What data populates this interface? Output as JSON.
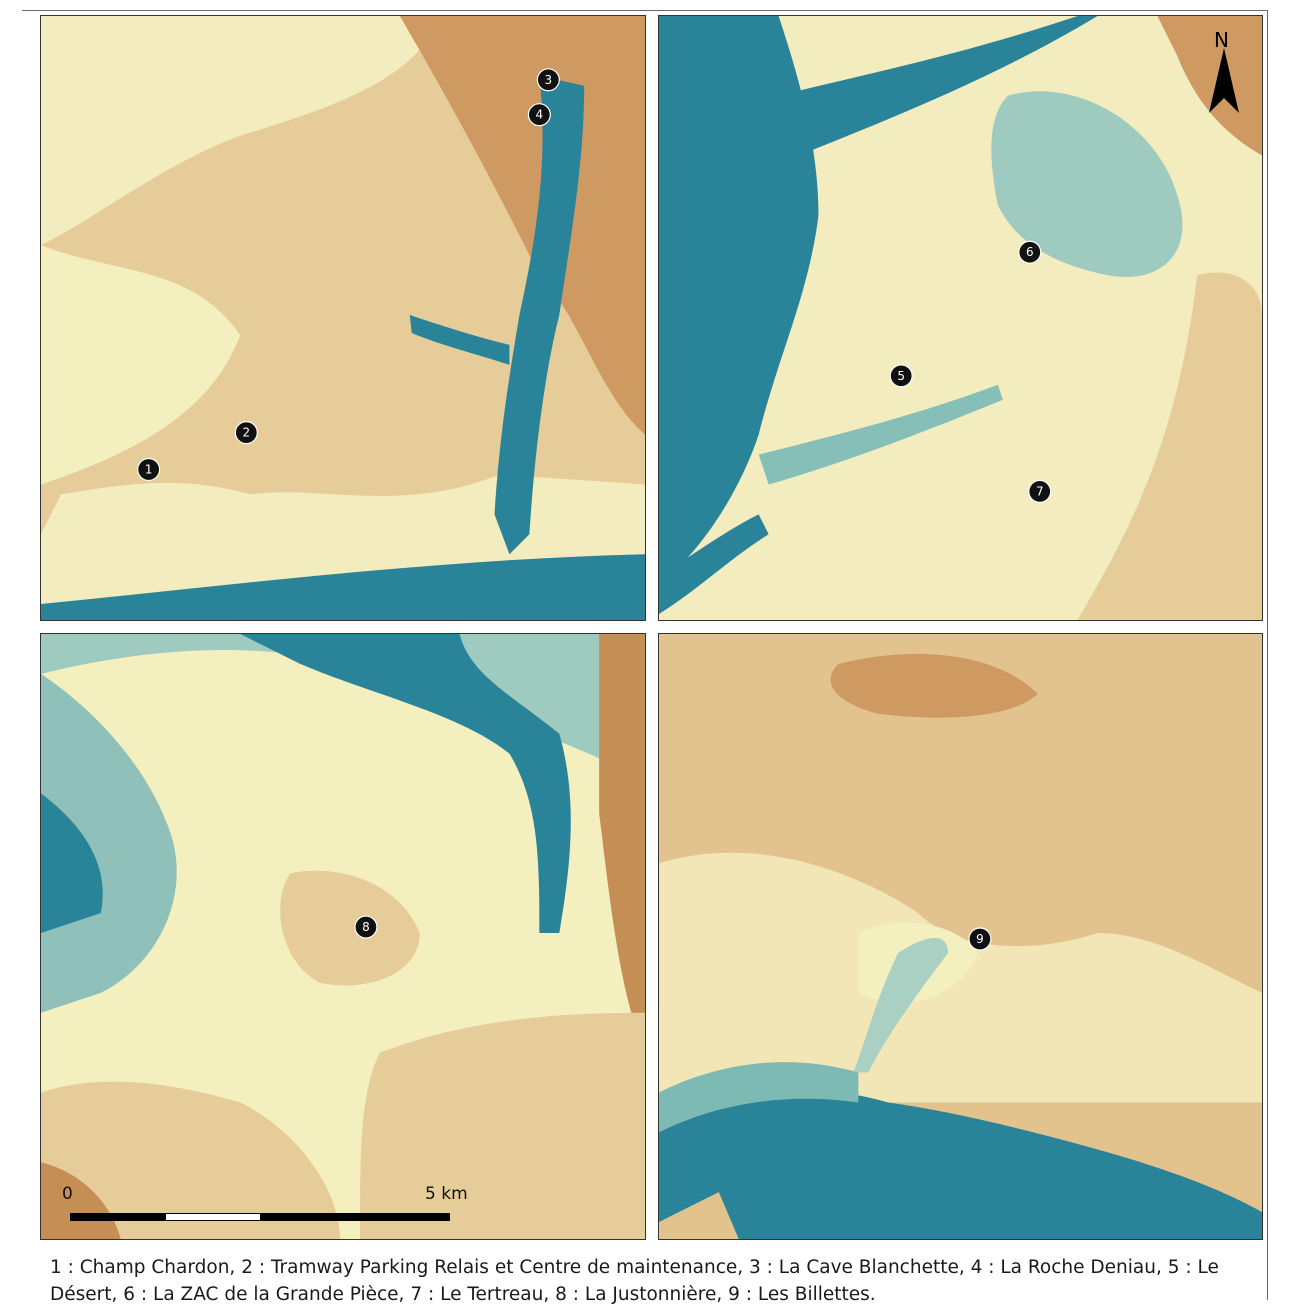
{
  "sites": [
    {
      "number": "1",
      "panel": "tl"
    },
    {
      "number": "2",
      "panel": "tl"
    },
    {
      "number": "3",
      "panel": "tl"
    },
    {
      "number": "4",
      "panel": "tl"
    },
    {
      "number": "5",
      "panel": "tr"
    },
    {
      "number": "6",
      "panel": "tr"
    },
    {
      "number": "7",
      "panel": "tr"
    },
    {
      "number": "8",
      "panel": "bl"
    },
    {
      "number": "9",
      "panel": "br"
    }
  ],
  "north_arrow": {
    "label": "N"
  },
  "scale_bar": {
    "start_label": "0",
    "end_label": "5 km",
    "segments": 4
  },
  "caption": "1 : Champ Chardon, 2 : Tramway Parking Relais et Centre de maintenance, 3 : La Cave Blanchette, 4 : La Roche Deniau, 5 : Le Désert, 6 : La ZAC de la Grande Pièce, 7 : Le Tertreau, 8 : La Justonnière, 9 : Les Billettes.",
  "colors": {
    "river": "#2a8499",
    "low": "#9fcac0",
    "mid": "#f4efbf",
    "high": "#e2c38e",
    "peak": "#c58e55"
  }
}
